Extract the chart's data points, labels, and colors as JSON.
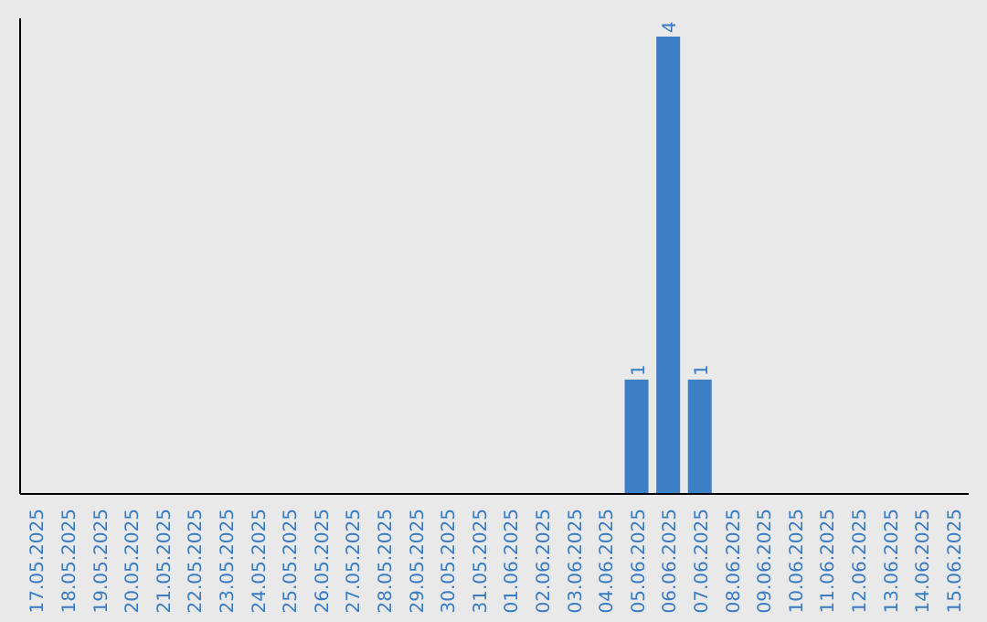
{
  "chart_data": {
    "type": "bar",
    "categories": [
      "17.05.2025",
      "18.05.2025",
      "19.05.2025",
      "20.05.2025",
      "21.05.2025",
      "22.05.2025",
      "23.05.2025",
      "24.05.2025",
      "25.05.2025",
      "26.05.2025",
      "27.05.2025",
      "28.05.2025",
      "29.05.2025",
      "30.05.2025",
      "31.05.2025",
      "01.06.2025",
      "02.06.2025",
      "03.06.2025",
      "04.06.2025",
      "05.06.2025",
      "06.06.2025",
      "07.06.2025",
      "08.06.2025",
      "09.06.2025",
      "10.06.2025",
      "11.06.2025",
      "12.06.2025",
      "13.06.2025",
      "14.06.2025",
      "15.06.2025"
    ],
    "values": [
      null,
      null,
      null,
      null,
      null,
      null,
      null,
      null,
      null,
      null,
      null,
      null,
      null,
      null,
      null,
      null,
      null,
      null,
      null,
      1,
      4,
      1,
      null,
      null,
      null,
      null,
      null,
      null,
      null,
      null
    ],
    "value_labels": [
      null,
      null,
      null,
      null,
      null,
      null,
      null,
      null,
      null,
      null,
      null,
      null,
      null,
      null,
      null,
      null,
      null,
      null,
      null,
      "1",
      "4",
      "1",
      null,
      null,
      null,
      null,
      null,
      null,
      null,
      null
    ],
    "color": "#3d7fc4",
    "tick_labels": "x",
    "grid": false,
    "legend": false
  }
}
